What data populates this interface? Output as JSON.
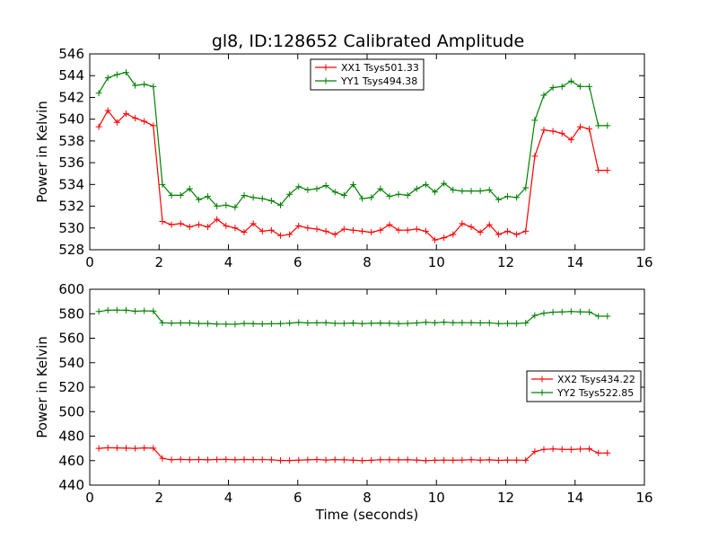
{
  "chart_data": [
    {
      "type": "line",
      "title": "gl8, ID:128652 Calibrated Amplitude",
      "xlabel": "",
      "ylabel": "Power in Kelvin",
      "xlim": [
        0,
        16
      ],
      "ylim": [
        528,
        546
      ],
      "xticks": [
        "0",
        "2",
        "4",
        "6",
        "8",
        "10",
        "12",
        "14",
        "16"
      ],
      "yticks": [
        "528",
        "530",
        "532",
        "534",
        "536",
        "538",
        "540",
        "542",
        "544",
        "546"
      ],
      "grid": false,
      "legend_position": "top-center",
      "x": [
        0.262,
        0.524,
        0.786,
        1.048,
        1.31,
        1.572,
        1.834,
        2.096,
        2.358,
        2.62,
        2.882,
        3.144,
        3.406,
        3.668,
        3.93,
        4.192,
        4.454,
        4.716,
        4.978,
        5.24,
        5.502,
        5.764,
        6.026,
        6.288,
        6.55,
        6.812,
        7.074,
        7.336,
        7.598,
        7.86,
        8.122,
        8.384,
        8.646,
        8.908,
        9.17,
        9.432,
        9.694,
        9.956,
        10.218,
        10.48,
        10.742,
        11.004,
        11.266,
        11.528,
        11.79,
        12.052,
        12.314,
        12.576,
        12.838,
        13.1,
        13.362,
        13.624,
        13.886,
        14.148,
        14.41,
        14.672,
        14.934
      ],
      "series": [
        {
          "name": "XX1 Tsys501.33",
          "color": "#ff0000",
          "values": [
            539.3,
            540.8,
            539.7,
            540.5,
            540.1,
            539.8,
            539.4,
            530.6,
            530.3,
            530.4,
            530.1,
            530.3,
            530.1,
            530.8,
            530.2,
            530.0,
            529.6,
            530.4,
            529.7,
            529.8,
            529.3,
            529.4,
            530.2,
            530.0,
            529.9,
            529.7,
            529.4,
            529.9,
            529.8,
            529.7,
            529.6,
            529.8,
            530.3,
            529.8,
            529.8,
            529.9,
            529.7,
            528.9,
            529.1,
            529.4,
            530.4,
            530.1,
            529.6,
            530.3,
            529.4,
            529.7,
            529.4,
            529.7,
            536.6,
            539.0,
            538.9,
            538.7,
            538.1,
            539.3,
            539.1,
            535.3,
            535.3
          ]
        },
        {
          "name": "YY1 Tsys494.38",
          "color": "#008000",
          "values": [
            542.4,
            543.8,
            544.1,
            544.3,
            543.1,
            543.2,
            543.0,
            534.0,
            533.0,
            533.0,
            533.6,
            532.6,
            532.9,
            532.0,
            532.1,
            531.9,
            533.0,
            532.8,
            532.7,
            532.5,
            532.1,
            533.1,
            533.8,
            533.5,
            533.6,
            533.9,
            533.3,
            533.0,
            534.0,
            532.7,
            532.8,
            533.6,
            532.9,
            533.1,
            533.0,
            533.6,
            534.0,
            533.3,
            534.1,
            533.5,
            533.4,
            533.4,
            533.4,
            533.5,
            532.6,
            532.9,
            532.8,
            533.7,
            539.9,
            542.2,
            542.9,
            543.0,
            543.5,
            543.0,
            543.0,
            539.4,
            539.4
          ]
        }
      ]
    },
    {
      "type": "line",
      "title": "",
      "xlabel": "Time (seconds)",
      "ylabel": "Power in Kelvin",
      "xlim": [
        0,
        16
      ],
      "ylim": [
        440,
        600
      ],
      "xticks": [
        "0",
        "2",
        "4",
        "6",
        "8",
        "10",
        "12",
        "14",
        "16"
      ],
      "yticks": [
        "440",
        "460",
        "480",
        "500",
        "520",
        "540",
        "560",
        "580",
        "600"
      ],
      "grid": false,
      "legend_position": "center-right",
      "x": [
        0.262,
        0.524,
        0.786,
        1.048,
        1.31,
        1.572,
        1.834,
        2.096,
        2.358,
        2.62,
        2.882,
        3.144,
        3.406,
        3.668,
        3.93,
        4.192,
        4.454,
        4.716,
        4.978,
        5.24,
        5.502,
        5.764,
        6.026,
        6.288,
        6.55,
        6.812,
        7.074,
        7.336,
        7.598,
        7.86,
        8.122,
        8.384,
        8.646,
        8.908,
        9.17,
        9.432,
        9.694,
        9.956,
        10.218,
        10.48,
        10.742,
        11.004,
        11.266,
        11.528,
        11.79,
        12.052,
        12.314,
        12.576,
        12.838,
        13.1,
        13.362,
        13.624,
        13.886,
        14.148,
        14.41,
        14.672,
        14.934
      ],
      "series": [
        {
          "name": "XX2 Tsys434.22",
          "color": "#ff0000",
          "values": [
            470.0,
            470.5,
            470.4,
            470.2,
            470.0,
            470.4,
            470.2,
            461.8,
            460.7,
            461.0,
            460.7,
            460.9,
            460.6,
            460.9,
            461.0,
            460.7,
            460.9,
            460.8,
            460.8,
            460.7,
            460.1,
            460.1,
            460.4,
            460.6,
            460.9,
            460.5,
            460.8,
            460.6,
            460.4,
            460.0,
            460.3,
            460.7,
            460.7,
            460.6,
            460.7,
            460.5,
            460.0,
            460.3,
            460.4,
            460.3,
            460.5,
            460.7,
            460.4,
            460.6,
            460.2,
            460.5,
            460.4,
            460.3,
            467.4,
            469.2,
            469.5,
            469.3,
            469.1,
            469.4,
            469.6,
            466.2,
            466.2
          ]
        },
        {
          "name": "YY2 Tsys522.85",
          "color": "#008000",
          "values": [
            581.8,
            582.9,
            583.0,
            582.9,
            582.0,
            582.4,
            582.2,
            572.6,
            572.3,
            572.5,
            572.5,
            572.0,
            572.0,
            571.6,
            571.5,
            571.4,
            572.1,
            571.8,
            571.7,
            571.8,
            571.9,
            572.3,
            572.9,
            572.5,
            572.6,
            572.7,
            572.1,
            572.1,
            572.4,
            571.9,
            572.2,
            572.4,
            572.2,
            571.9,
            572.1,
            572.5,
            573.0,
            572.6,
            573.1,
            572.7,
            572.7,
            572.7,
            572.5,
            572.6,
            571.9,
            572.1,
            572.0,
            572.5,
            578.6,
            580.5,
            581.3,
            581.5,
            581.8,
            581.6,
            581.4,
            578.0,
            578.0
          ]
        }
      ]
    }
  ]
}
